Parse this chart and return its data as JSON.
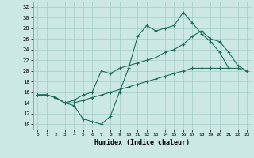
{
  "xlabel": "Humidex (Indice chaleur)",
  "xlim": [
    -0.5,
    23.5
  ],
  "ylim": [
    9,
    33
  ],
  "yticks": [
    10,
    12,
    14,
    16,
    18,
    20,
    22,
    24,
    26,
    28,
    30,
    32
  ],
  "xticks": [
    0,
    1,
    2,
    3,
    4,
    5,
    6,
    7,
    8,
    9,
    10,
    11,
    12,
    13,
    14,
    15,
    16,
    17,
    18,
    19,
    20,
    21,
    22,
    23
  ],
  "bg_color": "#cce8e4",
  "grid_color": "#aad0cc",
  "line_color": "#1a6b5a",
  "curve1_y": [
    15.5,
    15.5,
    15.0,
    14.0,
    13.5,
    11.0,
    10.5,
    10.0,
    11.5,
    16.0,
    20.5,
    26.5,
    28.5,
    27.5,
    28.0,
    28.5,
    31.0,
    29.0,
    27.0,
    25.5,
    23.5,
    20.5,
    null,
    null
  ],
  "curve2_y": [
    15.5,
    15.5,
    15.0,
    14.0,
    14.5,
    15.5,
    16.0,
    20.0,
    19.5,
    20.5,
    21.0,
    21.5,
    22.0,
    22.5,
    23.5,
    24.0,
    25.0,
    26.5,
    27.5,
    26.0,
    25.5,
    23.5,
    21.0,
    20.0
  ],
  "curve3_y": [
    15.5,
    15.5,
    15.0,
    14.0,
    14.0,
    14.5,
    15.0,
    15.5,
    16.0,
    16.5,
    17.0,
    17.5,
    18.0,
    18.5,
    19.0,
    19.5,
    20.0,
    20.5,
    20.5,
    20.5,
    20.5,
    20.5,
    20.5,
    20.0
  ]
}
